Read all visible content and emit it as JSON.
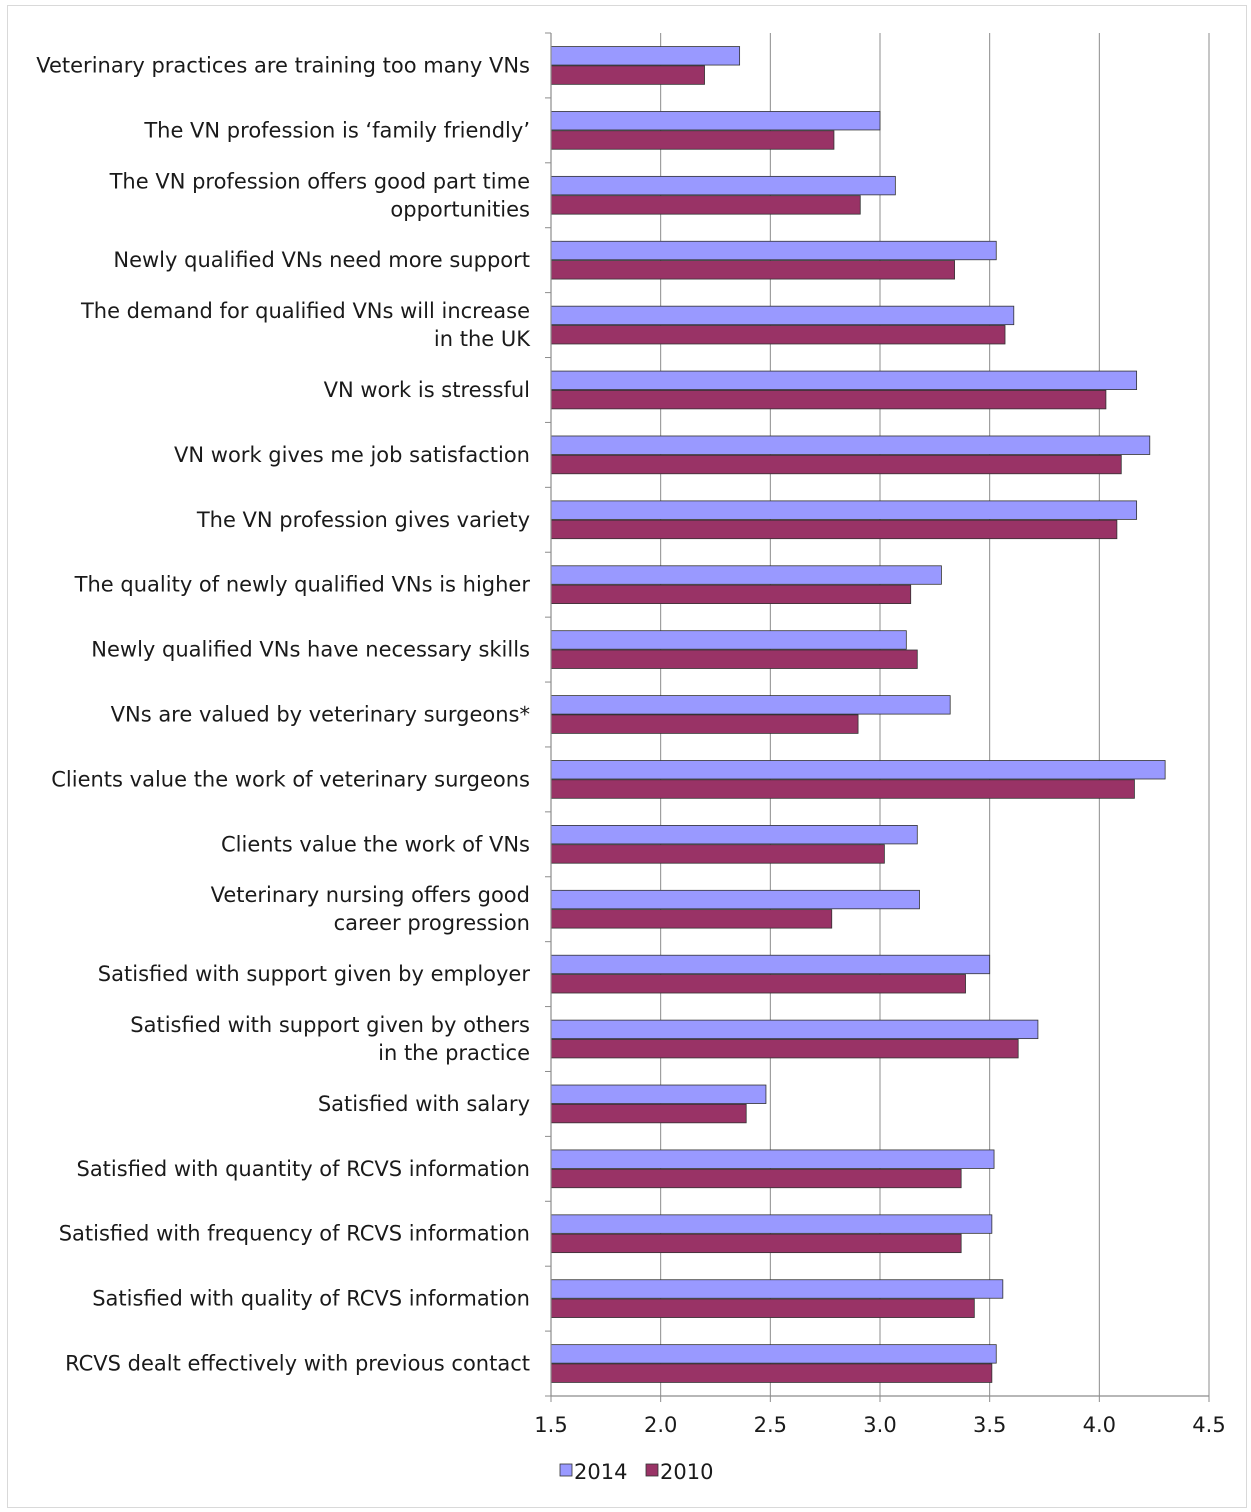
{
  "chart_data": {
    "type": "bar",
    "orientation": "horizontal",
    "title": "",
    "xlabel": "",
    "ylabel": "",
    "xlim": [
      1.5,
      4.5
    ],
    "ticks": [
      "1.5",
      "2.0",
      "2.5",
      "3.0",
      "3.5",
      "4.0",
      "4.5"
    ],
    "grid": true,
    "legend_position": "bottom",
    "categories": [
      [
        "Veterinary practices are training too many VNs"
      ],
      [
        "The VN profession is ‘family friendly’"
      ],
      [
        "The VN profession offers good part time",
        "opportunities"
      ],
      [
        "Newly qualified VNs need more support"
      ],
      [
        "The demand for qualified VNs will increase",
        "in the UK"
      ],
      [
        "VN work is stressful"
      ],
      [
        "VN work gives me job satisfaction"
      ],
      [
        "The VN profession gives variety"
      ],
      [
        "The quality of newly qualified VNs is higher"
      ],
      [
        "Newly qualified VNs have necessary skills"
      ],
      [
        "VNs are valued by veterinary surgeons*"
      ],
      [
        "Clients value the work of veterinary surgeons"
      ],
      [
        "Clients value the work of VNs"
      ],
      [
        "Veterinary nursing offers good",
        "career progression"
      ],
      [
        "Satisfied with support given by employer"
      ],
      [
        "Satisfied with support given by others",
        "in the practice"
      ],
      [
        "Satisfied with salary"
      ],
      [
        "Satisfied with quantity of RCVS information"
      ],
      [
        "Satisfied with frequency of RCVS information"
      ],
      [
        "Satisfied with quality of RCVS information"
      ],
      [
        "RCVS dealt effectively with previous contact"
      ]
    ],
    "series": [
      {
        "name": "2014",
        "color": "#9999ff",
        "values": [
          2.36,
          3.0,
          3.07,
          3.53,
          3.61,
          4.17,
          4.23,
          4.17,
          3.28,
          3.12,
          3.32,
          4.3,
          3.17,
          3.18,
          3.5,
          3.72,
          2.48,
          3.52,
          3.51,
          3.56,
          3.53
        ]
      },
      {
        "name": "2010",
        "color": "#993366",
        "values": [
          2.2,
          2.79,
          2.91,
          3.34,
          3.57,
          4.03,
          4.1,
          4.08,
          3.14,
          3.17,
          2.9,
          4.16,
          3.02,
          2.78,
          3.39,
          3.63,
          2.39,
          3.37,
          3.37,
          3.43,
          3.51
        ]
      }
    ]
  }
}
